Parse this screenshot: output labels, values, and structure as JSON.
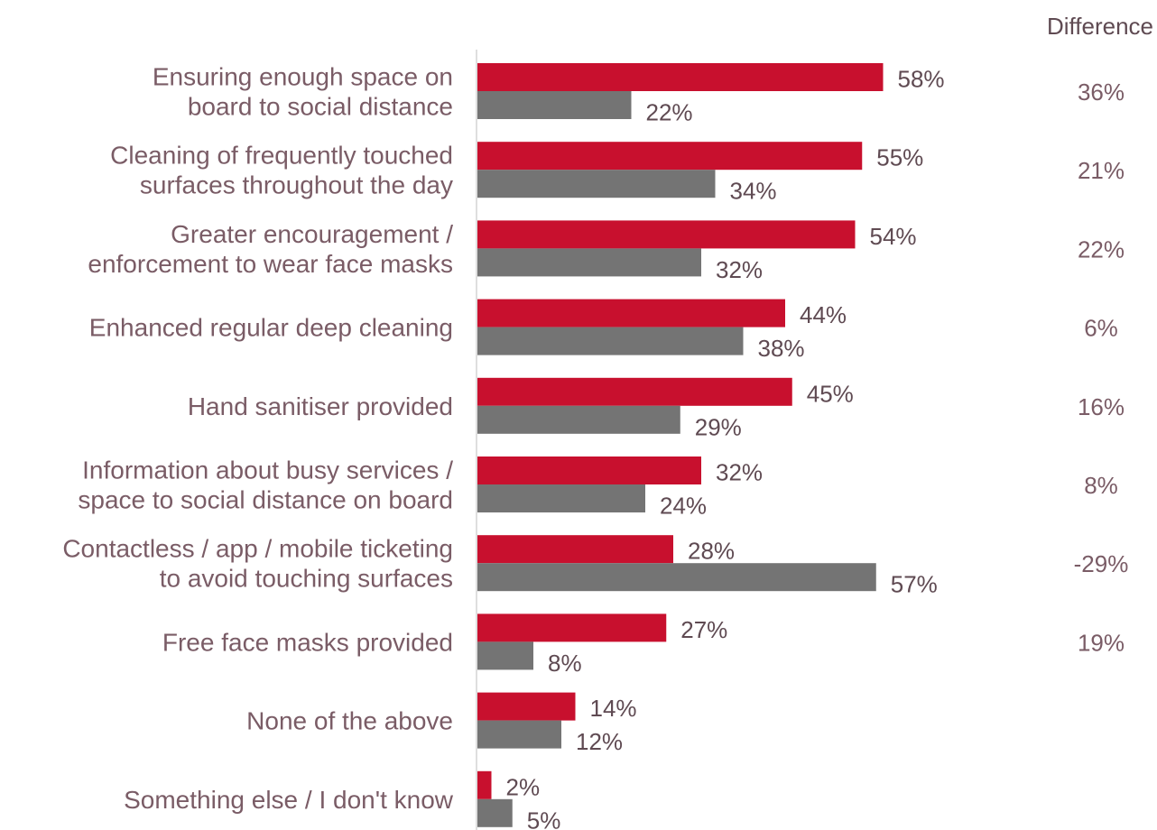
{
  "chart_data": {
    "type": "bar",
    "orientation": "horizontal",
    "categories": [
      [
        "Ensuring enough space on",
        "board to social distance"
      ],
      [
        "Cleaning of frequently touched",
        "surfaces throughout the day"
      ],
      [
        "Greater encouragement /",
        "enforcement to wear face masks"
      ],
      [
        "Enhanced regular deep cleaning"
      ],
      [
        "Hand sanitiser provided"
      ],
      [
        "Information about busy services /",
        "space to social distance on board"
      ],
      [
        "Contactless / app / mobile ticketing",
        "to avoid touching surfaces"
      ],
      [
        "Free face masks provided"
      ],
      [
        "None of the above"
      ],
      [
        "Something else / I don't know"
      ]
    ],
    "series": [
      {
        "values": [
          58,
          55,
          54,
          44,
          45,
          32,
          28,
          27,
          14,
          2
        ],
        "color": "#c8102e"
      },
      {
        "values": [
          22,
          34,
          32,
          38,
          29,
          24,
          57,
          8,
          12,
          5
        ],
        "color": "#747474"
      }
    ],
    "value_suffix": "%",
    "difference_header": "Difference",
    "differences": [
      "36%",
      "21%",
      "22%",
      "6%",
      "16%",
      "8%",
      "-29%",
      "19%"
    ],
    "xlim": [
      0,
      100
    ],
    "grid": false,
    "legend": "none"
  }
}
